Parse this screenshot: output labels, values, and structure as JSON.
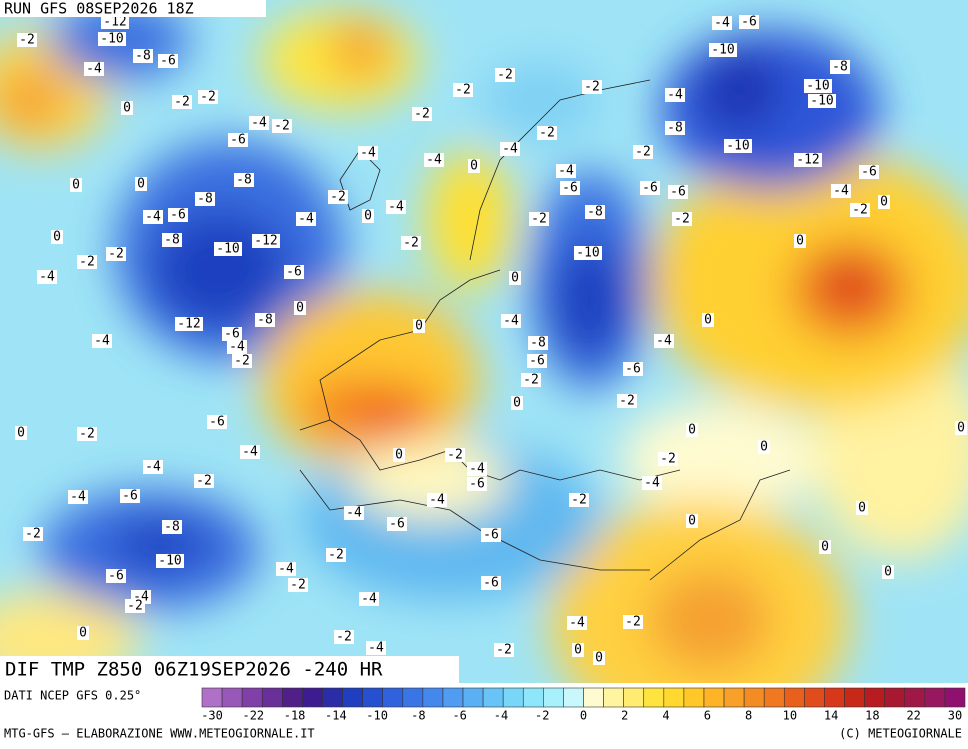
{
  "header": {
    "run": "RUN GFS 08SEP2026 18Z"
  },
  "map": {
    "title": "DIF TMP Z850 06Z19SEP2026 -240 HR",
    "contour_labels": [
      "-2",
      "-12",
      "-10",
      "-8",
      "-6",
      "-4",
      "0",
      "-2",
      "-2",
      "-4",
      "-2",
      "-6",
      "0",
      "0",
      "-8",
      "-8",
      "-4",
      "-6",
      "-8",
      "0",
      "-2",
      "-2",
      "-4",
      "-10",
      "-12",
      "-6",
      "-4",
      "-2",
      "0",
      "-4",
      "-4",
      "-4",
      "-2",
      "-2",
      "0",
      "-2",
      "-2",
      "-4",
      "-2",
      "-4",
      "-6",
      "-8",
      "-2",
      "-10",
      "0",
      "-2",
      "-6",
      "-6",
      "-2",
      "-2",
      "-8",
      "-4",
      "-4",
      "-6",
      "-10",
      "-10",
      "-12",
      "-10",
      "-10",
      "-8",
      "-6",
      "-4",
      "-2",
      "0",
      "0",
      "0",
      "-4",
      "-6",
      "-2",
      "-4",
      "-8",
      "-6",
      "-2",
      "0",
      "0",
      "0",
      "-8",
      "-12",
      "-6",
      "-4",
      "-2",
      "-4",
      "-6",
      "0",
      "-2",
      "-4",
      "0",
      "-2",
      "-4",
      "-6",
      "-4",
      "-2",
      "-4",
      "-6",
      "-4",
      "-2",
      "-4",
      "-2",
      "0",
      "0",
      "0",
      "0",
      "0",
      "-4",
      "-6",
      "-8",
      "-6",
      "-2",
      "-10",
      "-6",
      "-2",
      "-4",
      "-4",
      "-2",
      "-2",
      "-6",
      "-4",
      "0",
      "0",
      "0",
      "-2",
      "-4",
      "-4",
      "-2",
      "-2",
      "0",
      "0"
    ]
  },
  "legend": {
    "source": "DATI NCEP GFS 0.25°",
    "colors": [
      "#b070c8",
      "#9858b8",
      "#8040a8",
      "#683098",
      "#502088",
      "#3c1c90",
      "#2a2ca8",
      "#1f3fc0",
      "#2650d0",
      "#2f62dc",
      "#3a75e6",
      "#4488ee",
      "#4f9cf2",
      "#5bb0f4",
      "#68c4f6",
      "#78d6f8",
      "#8ee6fa",
      "#a8f0fb",
      "#c8f8fc",
      "#fffbd0",
      "#fff4a0",
      "#ffec70",
      "#ffe440",
      "#ffd830",
      "#ffc828",
      "#ffb428",
      "#f8a028",
      "#f48c24",
      "#f07820",
      "#e8601c",
      "#e04c1c",
      "#d8381a",
      "#c82818",
      "#b81c20",
      "#a81830",
      "#a01848",
      "#981860",
      "#901070"
    ],
    "ticks": [
      -30,
      -22,
      -18,
      -14,
      -10,
      -8,
      -6,
      -4,
      -2,
      0,
      2,
      4,
      6,
      8,
      10,
      14,
      18,
      22,
      30
    ]
  },
  "footer": {
    "left": "MTG-GFS — ELABORAZIONE WWW.METEOGIORNALE.IT",
    "right": "(C) METEOGIORNALE"
  }
}
